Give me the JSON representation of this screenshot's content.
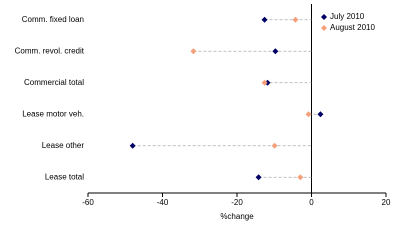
{
  "chart_data": {
    "type": "dot",
    "categories": [
      "Comm. fixed loan",
      "Comm. revol. credit",
      "Commercial total",
      "Lease motor veh.",
      "Lease other",
      "Lease total"
    ],
    "series": [
      {
        "name": "July 2010",
        "color": "#000066",
        "values": [
          -12.6,
          -9.7,
          -11.8,
          2.4,
          -48,
          -14.2
        ]
      },
      {
        "name": "August 2010",
        "color": "#f4a07a",
        "values": [
          -4.3,
          -31.7,
          -12.6,
          -0.8,
          -9.9,
          -3
        ]
      }
    ],
    "xlabel": "%change",
    "xlim": [
      -60,
      20
    ],
    "xticks": [
      -60,
      -40,
      -20,
      0,
      20
    ],
    "legend": "top-right"
  }
}
